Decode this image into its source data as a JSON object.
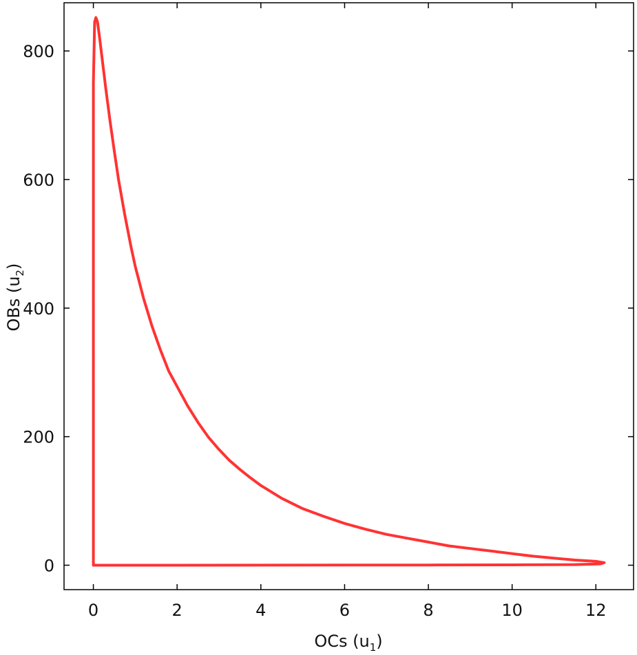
{
  "chart_data": {
    "type": "line",
    "title": "",
    "xlabel": {
      "base": "OCs (u",
      "sub": "1",
      "tail": ")"
    },
    "ylabel": {
      "base": "OBs (u",
      "sub": "2",
      "tail": ")"
    },
    "xlim": [
      -0.7,
      12.9
    ],
    "ylim": [
      -38,
      875
    ],
    "xticks": [
      0,
      2,
      4,
      6,
      8,
      10,
      12
    ],
    "yticks": [
      0,
      200,
      400,
      600,
      800
    ],
    "grid": false,
    "color": "#ff3333",
    "series": [
      {
        "points": [
          [
            0.0,
            0.0
          ],
          [
            0.0,
            750
          ],
          [
            0.03,
            845
          ],
          [
            0.06,
            852
          ],
          [
            0.1,
            845
          ],
          [
            0.15,
            820
          ],
          [
            0.22,
            783
          ],
          [
            0.3,
            740
          ],
          [
            0.4,
            690
          ],
          [
            0.5,
            644
          ],
          [
            0.6,
            600
          ],
          [
            0.75,
            545
          ],
          [
            0.9,
            495
          ],
          [
            1.0,
            465
          ],
          [
            1.2,
            415
          ],
          [
            1.4,
            372
          ],
          [
            1.6,
            335
          ],
          [
            1.8,
            302
          ],
          [
            2.0,
            278
          ],
          [
            2.25,
            248
          ],
          [
            2.5,
            222
          ],
          [
            2.75,
            199
          ],
          [
            3.0,
            180
          ],
          [
            3.25,
            163
          ],
          [
            3.5,
            149
          ],
          [
            3.75,
            136
          ],
          [
            4.0,
            124
          ],
          [
            4.5,
            104
          ],
          [
            5.0,
            88
          ],
          [
            5.5,
            76
          ],
          [
            6.0,
            65
          ],
          [
            6.5,
            56
          ],
          [
            7.0,
            48
          ],
          [
            7.5,
            42
          ],
          [
            8.0,
            36
          ],
          [
            8.5,
            30
          ],
          [
            9.0,
            26
          ],
          [
            9.5,
            22
          ],
          [
            10.0,
            18
          ],
          [
            10.5,
            14
          ],
          [
            11.0,
            11
          ],
          [
            11.5,
            8
          ],
          [
            12.0,
            6
          ],
          [
            12.2,
            4
          ],
          [
            12.1,
            2
          ],
          [
            11.5,
            1
          ],
          [
            10.0,
            0.5
          ],
          [
            8.0,
            0.3
          ],
          [
            6.0,
            0.2
          ],
          [
            4.0,
            0.1
          ],
          [
            2.0,
            0.05
          ],
          [
            0.0,
            0.0
          ]
        ]
      }
    ]
  }
}
